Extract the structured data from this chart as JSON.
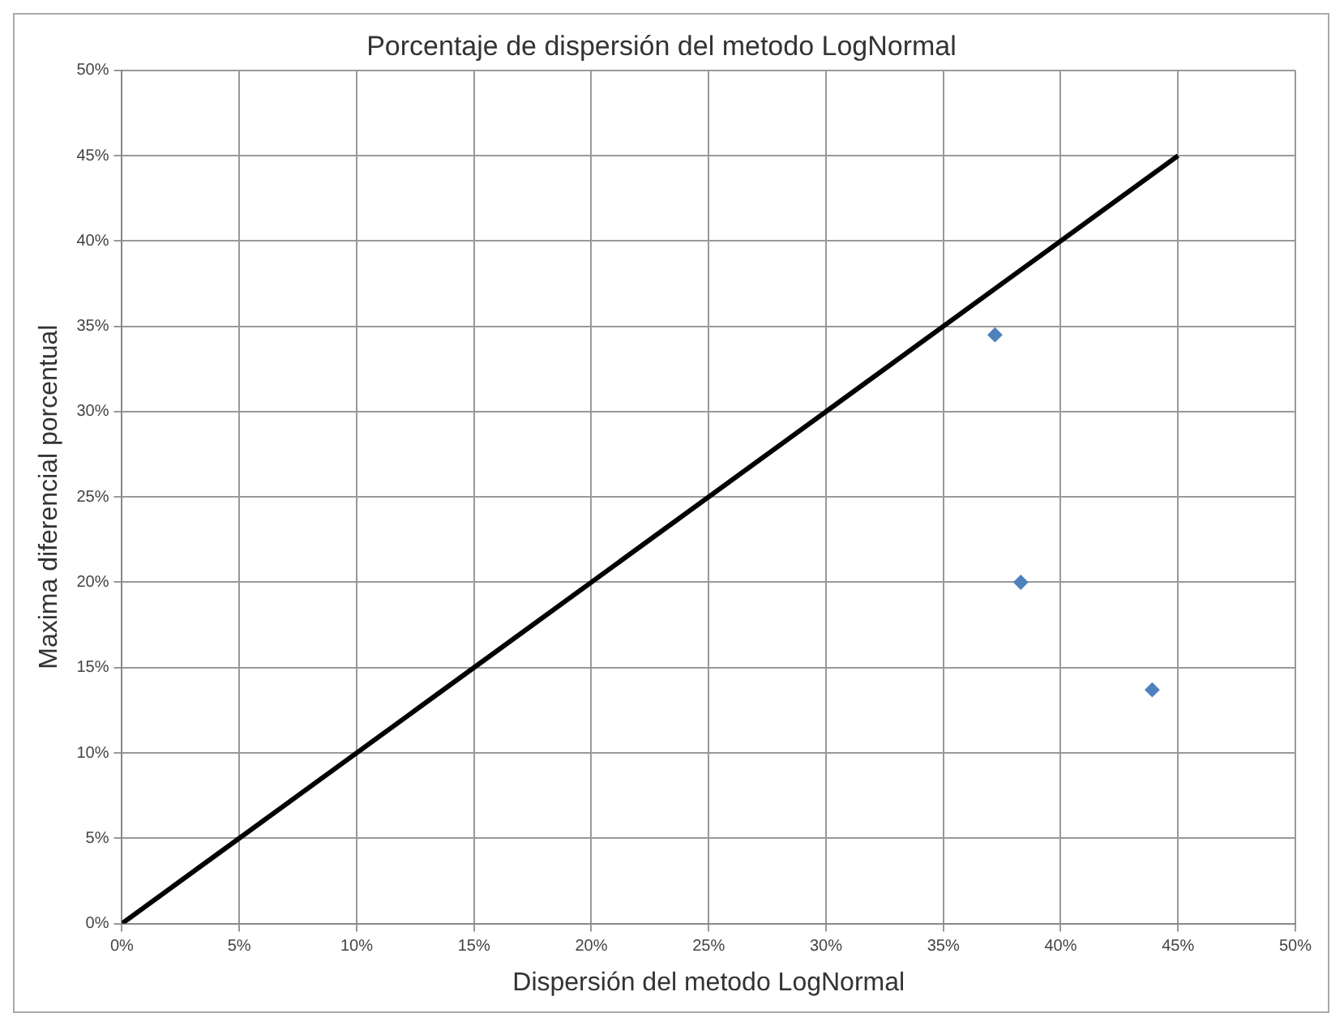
{
  "chart_data": {
    "type": "scatter",
    "title": "Porcentaje de dispersión del metodo LogNormal",
    "xlabel": "Dispersión del metodo LogNormal",
    "ylabel": "Maxima diferencial porcentual",
    "xlim": [
      0,
      50
    ],
    "ylim": [
      0,
      50
    ],
    "xticks": [
      {
        "value": 0,
        "label": "0%"
      },
      {
        "value": 5,
        "label": "5%"
      },
      {
        "value": 10,
        "label": "10%"
      },
      {
        "value": 15,
        "label": "15%"
      },
      {
        "value": 20,
        "label": "20%"
      },
      {
        "value": 25,
        "label": "25%"
      },
      {
        "value": 30,
        "label": "30%"
      },
      {
        "value": 35,
        "label": "35%"
      },
      {
        "value": 40,
        "label": "40%"
      },
      {
        "value": 45,
        "label": "45%"
      },
      {
        "value": 50,
        "label": "50%"
      }
    ],
    "yticks": [
      {
        "value": 0,
        "label": "0%"
      },
      {
        "value": 5,
        "label": "5%"
      },
      {
        "value": 10,
        "label": "10%"
      },
      {
        "value": 15,
        "label": "15%"
      },
      {
        "value": 20,
        "label": "20%"
      },
      {
        "value": 25,
        "label": "25%"
      },
      {
        "value": 30,
        "label": "30%"
      },
      {
        "value": 35,
        "label": "35%"
      },
      {
        "value": 40,
        "label": "40%"
      },
      {
        "value": 45,
        "label": "45%"
      },
      {
        "value": 50,
        "label": "50%"
      }
    ],
    "grid": true,
    "legend": false,
    "marker": "diamond",
    "series": [
      {
        "color": "#4f81bd",
        "x": [
          37.2,
          38.3,
          43.9
        ],
        "values": [
          34.5,
          20,
          13.7
        ]
      },
      {
        "type": "line",
        "color": "#000000",
        "marker": "none",
        "x": [
          0,
          45
        ],
        "values": [
          0,
          45
        ]
      }
    ]
  }
}
